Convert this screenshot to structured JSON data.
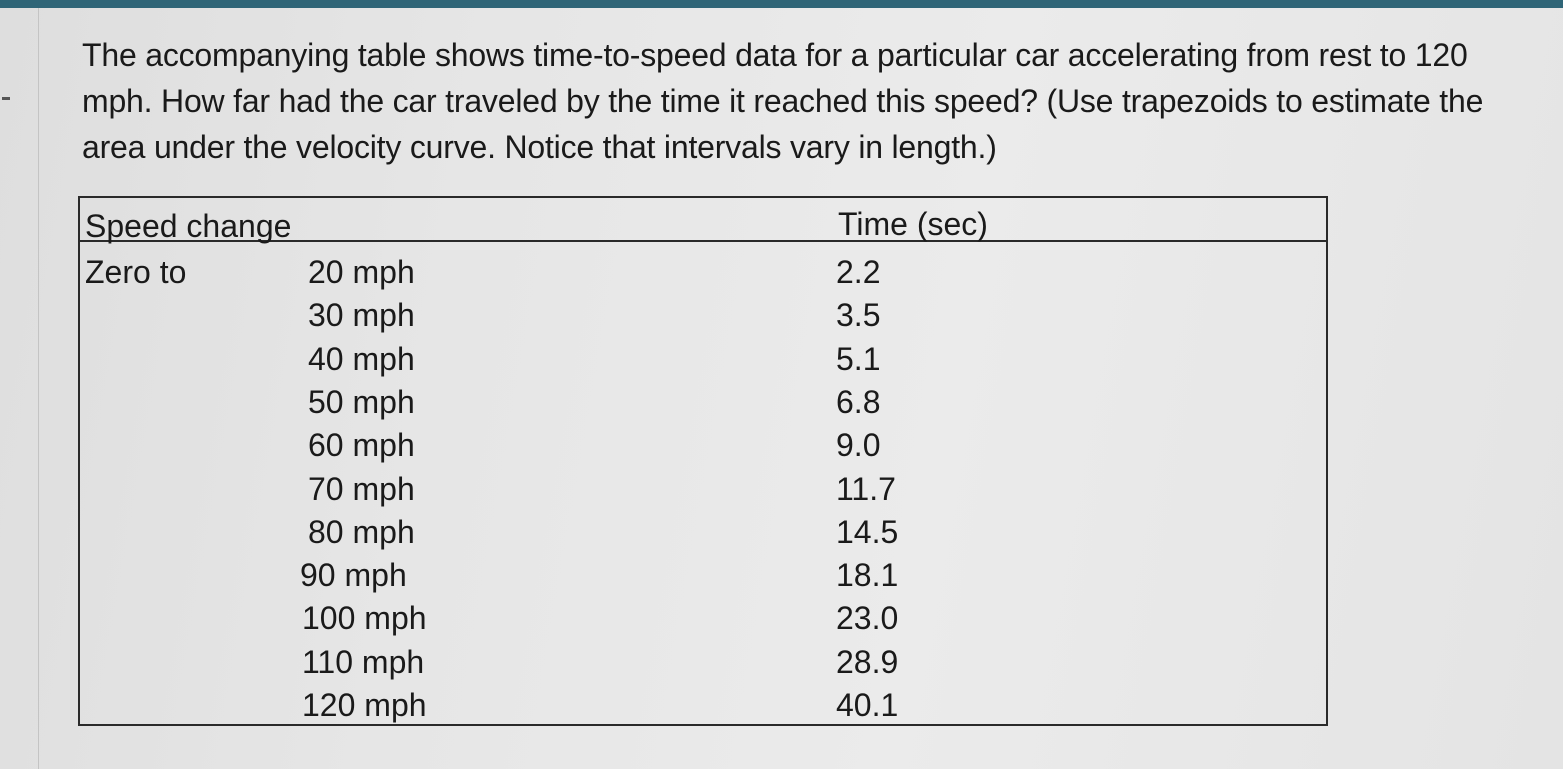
{
  "question": "The accompanying table shows time-to-speed data for a particular car accelerating from rest to 120 mph. How far had the car traveled by the time it reached this speed? (Use trapezoids to estimate the area under the velocity curve. Notice that intervals vary in length.)",
  "table": {
    "headers": {
      "speed_change": "Speed change",
      "time": "Time (sec)"
    },
    "prefix": "Zero to",
    "rows": [
      {
        "speed": "20 mph",
        "time": "2.2"
      },
      {
        "speed": "30 mph",
        "time": "3.5"
      },
      {
        "speed": "40 mph",
        "time": "5.1"
      },
      {
        "speed": "50 mph",
        "time": "6.8"
      },
      {
        "speed": "60 mph",
        "time": "9.0"
      },
      {
        "speed": "70 mph",
        "time": "11.7"
      },
      {
        "speed": "80 mph",
        "time": "14.5"
      },
      {
        "speed": "90 mph",
        "time": "18.1"
      },
      {
        "speed": "100 mph",
        "time": "23.0"
      },
      {
        "speed": "110 mph",
        "time": "28.9"
      },
      {
        "speed": "120 mph",
        "time": "40.1"
      }
    ]
  }
}
